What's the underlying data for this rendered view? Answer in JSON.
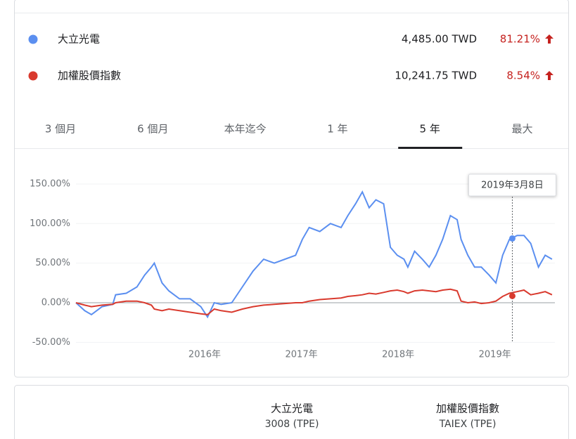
{
  "legend": [
    {
      "name": "大立光電",
      "price": "4,485.00 TWD",
      "change": {
        "value": 81.21,
        "label": "81.21%"
      }
    },
    {
      "name": "加權股價指數",
      "price": "10,241.75 TWD",
      "change": {
        "value": 8.54,
        "label": "8.54%"
      }
    }
  ],
  "tabs": {
    "items": [
      "3 個月",
      "6 個月",
      "本年迄今",
      "1 年",
      "5 年",
      "最大"
    ],
    "selected": 4
  },
  "chart_data": {
    "type": "line",
    "x": [
      2014.67,
      2014.76,
      2014.83,
      2014.94,
      2015.05,
      2015.08,
      2015.19,
      2015.3,
      2015.38,
      2015.45,
      2015.48,
      2015.56,
      2015.63,
      2015.74,
      2015.85,
      2015.96,
      2016.03,
      2016.1,
      2016.17,
      2016.28,
      2016.39,
      2016.5,
      2016.61,
      2016.72,
      2016.83,
      2016.94,
      2017.01,
      2017.08,
      2017.19,
      2017.3,
      2017.41,
      2017.48,
      2017.56,
      2017.63,
      2017.7,
      2017.77,
      2017.85,
      2017.92,
      2017.99,
      2018.06,
      2018.1,
      2018.17,
      2018.25,
      2018.32,
      2018.39,
      2018.46,
      2018.54,
      2018.61,
      2018.65,
      2018.72,
      2018.79,
      2018.86,
      2018.94,
      2019.01,
      2019.08,
      2019.15,
      2019.23,
      2019.3,
      2019.37,
      2019.45,
      2019.52,
      2019.59
    ],
    "series": [
      {
        "name": "大立光電",
        "color": "#5b8ff0",
        "values": [
          0,
          -10,
          -15,
          -5,
          -2,
          10,
          12,
          20,
          35,
          45,
          50,
          25,
          15,
          5,
          5,
          -5,
          -18,
          0,
          -2,
          0,
          20,
          40,
          55,
          50,
          55,
          60,
          80,
          95,
          90,
          100,
          95,
          110,
          125,
          140,
          120,
          130,
          125,
          70,
          60,
          55,
          45,
          65,
          55,
          45,
          60,
          80,
          110,
          105,
          80,
          60,
          45,
          45,
          35,
          25,
          60,
          80,
          85,
          85,
          75,
          45,
          60,
          55
        ]
      },
      {
        "name": "加權股價指數",
        "color": "#d93a2e",
        "values": [
          0,
          -3,
          -5,
          -3,
          -2,
          0,
          2,
          2,
          0,
          -3,
          -8,
          -10,
          -8,
          -10,
          -12,
          -14,
          -15,
          -8,
          -10,
          -12,
          -8,
          -5,
          -3,
          -2,
          -1,
          0,
          0,
          2,
          4,
          5,
          6,
          8,
          9,
          10,
          12,
          11,
          13,
          15,
          16,
          14,
          12,
          15,
          16,
          15,
          14,
          16,
          17,
          15,
          2,
          0,
          1,
          -1,
          0,
          2,
          8,
          12,
          14,
          16,
          10,
          12,
          14,
          10
        ]
      }
    ],
    "xlim": [
      2014.67,
      2019.62
    ],
    "xticks": [
      {
        "value": 2016,
        "label": "2016年"
      },
      {
        "value": 2017,
        "label": "2017年"
      },
      {
        "value": 2018,
        "label": "2018年"
      },
      {
        "value": 2019,
        "label": "2019年"
      }
    ],
    "ylim": [
      -58,
      165
    ],
    "yticks": [
      {
        "value": -50,
        "label": "-50.00%"
      },
      {
        "value": 0,
        "label": "0.00%"
      },
      {
        "value": 50,
        "label": "50.00%"
      },
      {
        "value": 100,
        "label": "100.00%"
      },
      {
        "value": 150,
        "label": "150.00%"
      }
    ],
    "grid": true,
    "hover": {
      "x": 2019.18,
      "label": "2019年3月8日"
    }
  },
  "compare": [
    {
      "name": "大立光電",
      "ticker": "3008 (TPE)"
    },
    {
      "name": "加權股價指數",
      "ticker": "TAIEX (TPE)"
    }
  ]
}
